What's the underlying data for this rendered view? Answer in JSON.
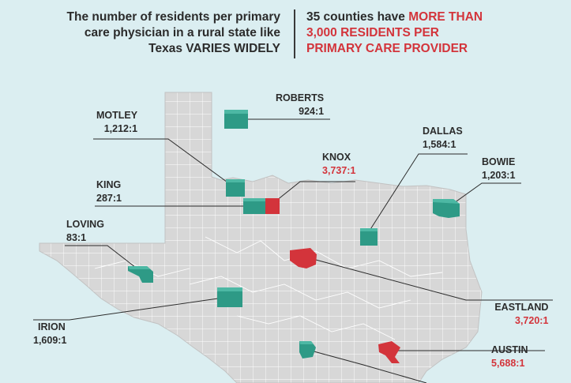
{
  "header": {
    "left_lines": [
      "The number of residents per primary",
      "care physician in a rural state like",
      "Texas VARIES WIDELY"
    ],
    "right_lines": [
      [
        "35 counties have ",
        "MORE THAN"
      ],
      [
        "",
        "3,000 RESIDENTS PER"
      ],
      [
        "",
        "PRIMARY CARE PROVIDER"
      ]
    ]
  },
  "counties": [
    {
      "name": "ROBERTS",
      "ratio": "924:1",
      "category": "low"
    },
    {
      "name": "MOTLEY",
      "ratio": "1,212:1",
      "category": "low"
    },
    {
      "name": "KNOX",
      "ratio": "3,737:1",
      "category": "high"
    },
    {
      "name": "DALLAS",
      "ratio": "1,584:1",
      "category": "low"
    },
    {
      "name": "BOWIE",
      "ratio": "1,203:1",
      "category": "low"
    },
    {
      "name": "KING",
      "ratio": "287:1",
      "category": "low"
    },
    {
      "name": "LOVING",
      "ratio": "83:1",
      "category": "low"
    },
    {
      "name": "EASTLAND",
      "ratio": "3,720:1",
      "category": "high"
    },
    {
      "name": "IRION",
      "ratio": "1,609:1",
      "category": "low"
    },
    {
      "name": "AUSTIN",
      "ratio": "5,688:1",
      "category": "high"
    }
  ],
  "colors": {
    "background": "#dbeef1",
    "state_fill": "#d7d7d7",
    "county_lines": "#ffffff",
    "low_ratio": "#2e9a86",
    "high_ratio": "#d3343b",
    "text": "#2b2b2b"
  }
}
